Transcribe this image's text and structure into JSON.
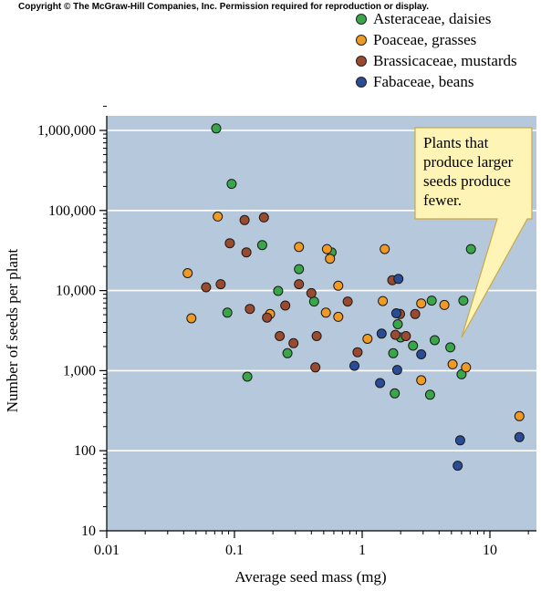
{
  "copyright": "Copyright © The McGraw-Hill Companies, Inc. Permission required for reproduction or display.",
  "colors": {
    "plot_background": "#b6c8dc",
    "gridline": "#ffffff",
    "callout_fill": "#fdf4b6",
    "callout_stroke": "#c9a94a"
  },
  "chart_data": {
    "type": "scatter",
    "title": "",
    "xlabel": "Average seed mass (mg)",
    "ylabel": "Number of seeds per plant",
    "x_scale": "log",
    "y_scale": "log",
    "xlim": [
      0.01,
      20
    ],
    "ylim": [
      10,
      2000000
    ],
    "grid": "horizontal",
    "legend_position": "top-right",
    "x_ticks": [
      {
        "value": 0.01,
        "label": "0.01"
      },
      {
        "value": 0.1,
        "label": "0.1"
      },
      {
        "value": 1,
        "label": "1"
      },
      {
        "value": 10,
        "label": "10"
      }
    ],
    "y_ticks": [
      {
        "value": 10,
        "label": "10"
      },
      {
        "value": 100,
        "label": "100"
      },
      {
        "value": 1000,
        "label": "1,000"
      },
      {
        "value": 10000,
        "label": "10,000"
      },
      {
        "value": 100000,
        "label": "100,000"
      },
      {
        "value": 1000000,
        "label": "1,000,000"
      }
    ],
    "annotation": {
      "lines": [
        "Plants that",
        "produce larger",
        "seeds produce",
        "fewer."
      ],
      "points_to": {
        "x": 6.0,
        "y": 2600
      }
    },
    "series": [
      {
        "name": "Asteraceae, daisies",
        "color": "#3aa64a",
        "points": [
          [
            0.072,
            1060000
          ],
          [
            0.095,
            215000
          ],
          [
            0.165,
            37000
          ],
          [
            0.575,
            30000
          ],
          [
            0.32,
            18500
          ],
          [
            0.22,
            9900
          ],
          [
            0.42,
            7300
          ],
          [
            0.088,
            5300
          ],
          [
            0.26,
            1650
          ],
          [
            0.126,
            840
          ],
          [
            7.1,
            33000
          ],
          [
            3.5,
            7500
          ],
          [
            6.2,
            7500
          ],
          [
            1.9,
            3800
          ],
          [
            2.0,
            2600
          ],
          [
            3.7,
            2400
          ],
          [
            2.5,
            2050
          ],
          [
            4.9,
            1950
          ],
          [
            1.75,
            1650
          ],
          [
            6.0,
            900
          ],
          [
            1.8,
            520
          ],
          [
            3.4,
            500
          ]
        ]
      },
      {
        "name": "Poaceae, grasses",
        "color": "#f09a24",
        "points": [
          [
            0.043,
            16500
          ],
          [
            0.046,
            4500
          ],
          [
            0.074,
            84000
          ],
          [
            0.32,
            35000
          ],
          [
            0.53,
            33000
          ],
          [
            0.56,
            25000
          ],
          [
            0.19,
            5100
          ],
          [
            0.52,
            5300
          ],
          [
            0.65,
            4700
          ],
          [
            0.65,
            11500
          ],
          [
            1.5,
            33000
          ],
          [
            1.45,
            7400
          ],
          [
            2.9,
            6900
          ],
          [
            4.4,
            6600
          ],
          [
            1.1,
            2500
          ],
          [
            5.1,
            1200
          ],
          [
            6.5,
            1100
          ],
          [
            2.9,
            760
          ],
          [
            17.0,
            270
          ]
        ]
      },
      {
        "name": "Brassicaceae, mustards",
        "color": "#9a4a2e",
        "points": [
          [
            0.12,
            76000
          ],
          [
            0.17,
            82000
          ],
          [
            0.092,
            39000
          ],
          [
            0.124,
            30000
          ],
          [
            0.078,
            12000
          ],
          [
            0.06,
            11000
          ],
          [
            0.25,
            6500
          ],
          [
            0.132,
            5900
          ],
          [
            0.18,
            4600
          ],
          [
            0.32,
            12000
          ],
          [
            0.4,
            9300
          ],
          [
            0.77,
            7300
          ],
          [
            0.226,
            2700
          ],
          [
            0.29,
            2200
          ],
          [
            0.44,
            2700
          ],
          [
            0.43,
            1100
          ],
          [
            0.92,
            1700
          ],
          [
            1.72,
            13500
          ],
          [
            1.82,
            2800
          ],
          [
            1.98,
            5100
          ],
          [
            2.2,
            2700
          ],
          [
            2.6,
            5100
          ]
        ]
      },
      {
        "name": "Fabaceae, beans",
        "color": "#2a4c96",
        "points": [
          [
            1.92,
            14000
          ],
          [
            1.85,
            5200
          ],
          [
            1.42,
            2900
          ],
          [
            0.87,
            1150
          ],
          [
            1.38,
            700
          ],
          [
            1.88,
            1020
          ],
          [
            2.9,
            1600
          ],
          [
            5.85,
            135
          ],
          [
            5.6,
            65
          ],
          [
            17.0,
            148
          ]
        ]
      }
    ]
  }
}
